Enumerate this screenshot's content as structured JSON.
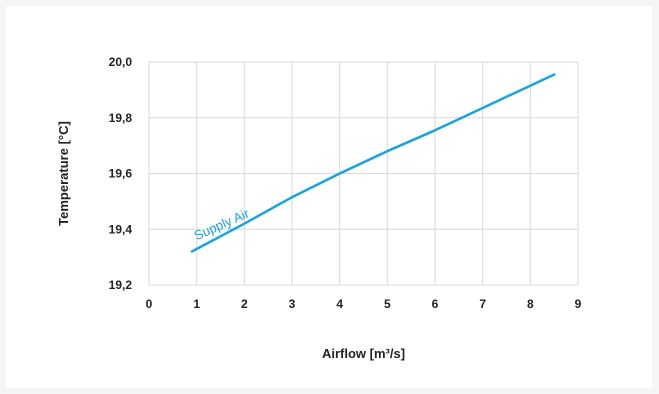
{
  "chart_data": {
    "type": "line",
    "xlabel": "Airflow [m³/s]",
    "ylabel": "Temperature [°C]",
    "xlim": [
      0,
      9
    ],
    "ylim": [
      19.2,
      20.0
    ],
    "x_ticks": [
      "0",
      "1",
      "2",
      "3",
      "4",
      "5",
      "6",
      "7",
      "8",
      "9"
    ],
    "y_ticks": [
      "19,2",
      "19,4",
      "19,6",
      "19,8",
      "20,0"
    ],
    "grid": true,
    "series": [
      {
        "name": "Supply Air",
        "color": "#1aa3dd",
        "x": [
          0.9,
          2.0,
          3.0,
          4.0,
          5.0,
          6.0,
          7.0,
          8.0,
          8.5
        ],
        "y": [
          19.32,
          19.42,
          19.515,
          19.6,
          19.68,
          19.755,
          19.835,
          19.915,
          19.955
        ]
      }
    ]
  }
}
